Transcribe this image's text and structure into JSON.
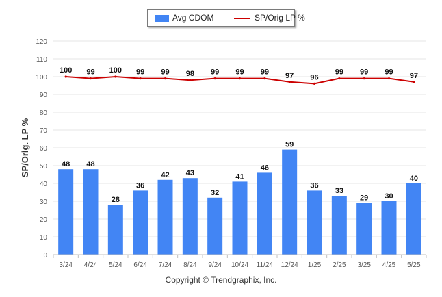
{
  "chart_data": {
    "type": "bar",
    "categories": [
      "3/24",
      "4/24",
      "5/24",
      "6/24",
      "7/24",
      "8/24",
      "9/24",
      "10/24",
      "11/24",
      "12/24",
      "1/25",
      "2/25",
      "3/25",
      "4/25",
      "5/25"
    ],
    "series": [
      {
        "name": "Avg CDOM",
        "type": "bar",
        "color": "#4285f4",
        "values": [
          48,
          48,
          28,
          36,
          42,
          43,
          32,
          41,
          46,
          59,
          36,
          33,
          29,
          30,
          40
        ]
      },
      {
        "name": "SP/Orig LP %",
        "type": "line",
        "color": "#cc0000",
        "values": [
          100,
          99,
          100,
          99,
          99,
          98,
          99,
          99,
          99,
          97,
          96,
          99,
          99,
          99,
          97
        ]
      }
    ],
    "ylabel": "SP/Orig. LP %",
    "xlabel": "",
    "ylim": [
      0,
      120
    ],
    "yticks": [
      0,
      10,
      20,
      30,
      40,
      50,
      60,
      70,
      80,
      90,
      100,
      110,
      120
    ],
    "grid": true,
    "legend_position": "top-center"
  },
  "copyright": "Copyright © Trendgraphix, Inc."
}
